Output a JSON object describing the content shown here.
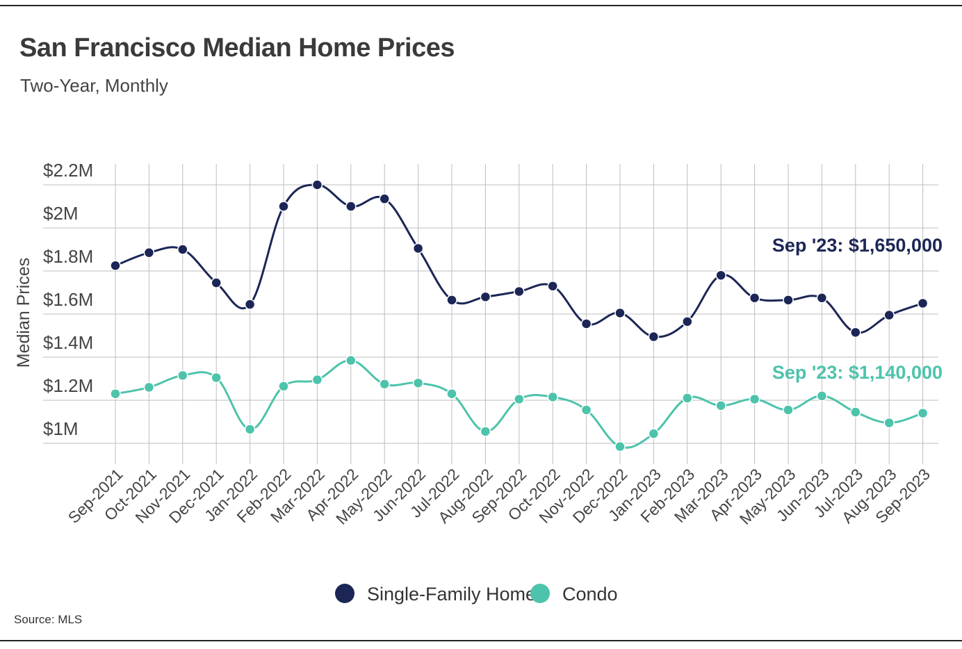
{
  "title": "San Francisco Median Home Prices",
  "subtitle": "Two-Year, Monthly",
  "source": "Source: MLS",
  "colors": {
    "single_family": "#1c2656",
    "condo": "#4dc3ab",
    "grid": "#bdbdbd"
  },
  "chart_data": {
    "type": "line",
    "title": "San Francisco Median Home Prices",
    "subtitle": "Two-Year, Monthly",
    "xlabel": "",
    "ylabel": "Median Prices",
    "categories": [
      "Sep-2021",
      "Oct-2021",
      "Nov-2021",
      "Dec-2021",
      "Jan-2022",
      "Feb-2022",
      "Mar-2022",
      "Apr-2022",
      "May-2022",
      "Jun-2022",
      "Jul-2022",
      "Aug-2022",
      "Sep-2022",
      "Oct-2022",
      "Nov-2022",
      "Dec-2022",
      "Jan-2023",
      "Feb-2023",
      "Mar-2023",
      "Apr-2023",
      "May-2023",
      "Jun-2023",
      "Jul-2023",
      "Aug-2023",
      "Sep-2023"
    ],
    "ylim": [
      900000,
      2200000
    ],
    "yticks": [
      1000000,
      1200000,
      1400000,
      1600000,
      1800000,
      2000000,
      2200000
    ],
    "ytick_labels": [
      "$1M",
      "$1.2M",
      "$1.4M",
      "$1.6M",
      "$1.8M",
      "$2M",
      "$2.2M"
    ],
    "grid": true,
    "legend_position": "bottom-center",
    "series": [
      {
        "name": "Single-Family Home",
        "values": [
          1825000,
          1885000,
          1900000,
          1745000,
          1645000,
          2100000,
          2200000,
          2100000,
          2135000,
          1905000,
          1665000,
          1680000,
          1705000,
          1730000,
          1555000,
          1605000,
          1495000,
          1565000,
          1780000,
          1675000,
          1665000,
          1675000,
          1515000,
          1595000,
          1650000
        ]
      },
      {
        "name": "Condo",
        "values": [
          1230000,
          1260000,
          1315000,
          1305000,
          1065000,
          1265000,
          1295000,
          1385000,
          1275000,
          1280000,
          1230000,
          1055000,
          1205000,
          1215000,
          1155000,
          985000,
          1045000,
          1210000,
          1175000,
          1205000,
          1155000,
          1220000,
          1145000,
          1095000,
          1140000
        ]
      }
    ],
    "annotations": [
      {
        "series": "Single-Family Home",
        "text": "Sep '23: $1,650,000"
      },
      {
        "series": "Condo",
        "text": "Sep '23: $1,140,000"
      }
    ]
  }
}
